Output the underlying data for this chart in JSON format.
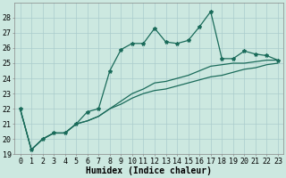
{
  "title": "",
  "xlabel": "Humidex (Indice chaleur)",
  "bg_color": "#cce8e0",
  "grid_color": "#aacccc",
  "line_color": "#1a6b5a",
  "xlim": [
    -0.5,
    23.5
  ],
  "ylim": [
    19,
    29
  ],
  "yticks": [
    19,
    20,
    21,
    22,
    23,
    24,
    25,
    26,
    27,
    28
  ],
  "xticks": [
    0,
    1,
    2,
    3,
    4,
    5,
    6,
    7,
    8,
    9,
    10,
    11,
    12,
    13,
    14,
    15,
    16,
    17,
    18,
    19,
    20,
    21,
    22,
    23
  ],
  "series1": [
    22.0,
    19.3,
    20.0,
    20.4,
    20.4,
    21.0,
    21.8,
    22.0,
    24.5,
    25.9,
    26.3,
    26.3,
    27.3,
    26.4,
    26.3,
    26.5,
    27.4,
    28.4,
    25.3,
    25.3,
    25.8,
    25.6,
    25.5,
    25.2
  ],
  "series2": [
    22.0,
    19.3,
    20.0,
    20.4,
    20.4,
    21.0,
    21.2,
    21.5,
    22.0,
    22.5,
    23.0,
    23.3,
    23.7,
    23.8,
    24.0,
    24.2,
    24.5,
    24.8,
    24.9,
    25.0,
    25.0,
    25.1,
    25.2,
    25.2
  ],
  "series3": [
    22.0,
    19.3,
    20.0,
    20.4,
    20.4,
    21.0,
    21.2,
    21.5,
    22.0,
    22.3,
    22.7,
    23.0,
    23.2,
    23.3,
    23.5,
    23.7,
    23.9,
    24.1,
    24.2,
    24.4,
    24.6,
    24.7,
    24.9,
    25.0
  ],
  "xlabel_fontsize": 7,
  "tick_fontsize": 6
}
